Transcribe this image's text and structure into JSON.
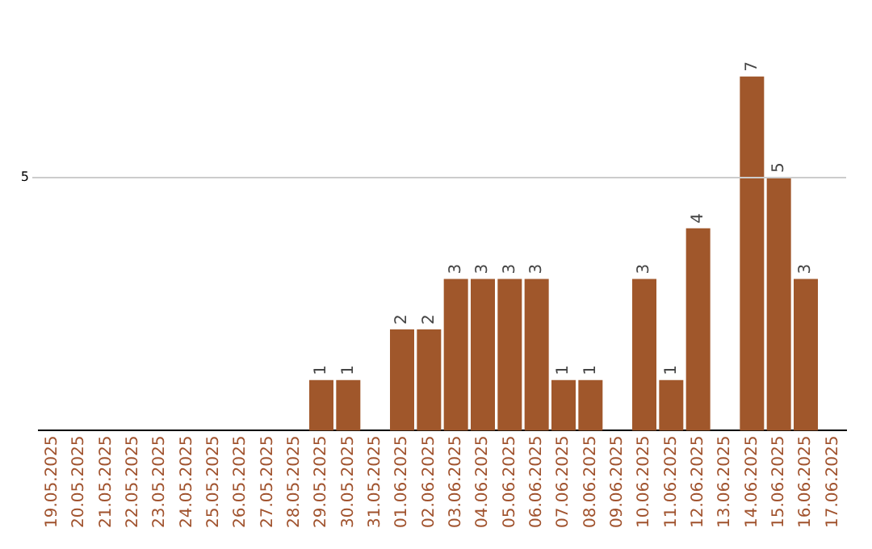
{
  "chart_data": {
    "type": "bar",
    "categories": [
      "19.05.2025",
      "20.05.2025",
      "21.05.2025",
      "22.05.2025",
      "23.05.2025",
      "24.05.2025",
      "25.05.2025",
      "26.05.2025",
      "27.05.2025",
      "28.05.2025",
      "29.05.2025",
      "30.05.2025",
      "31.05.2025",
      "01.06.2025",
      "02.06.2025",
      "03.06.2025",
      "04.06.2025",
      "05.06.2025",
      "06.06.2025",
      "07.06.2025",
      "08.06.2025",
      "09.06.2025",
      "10.06.2025",
      "11.06.2025",
      "12.06.2025",
      "13.06.2025",
      "14.06.2025",
      "15.06.2025",
      "16.06.2025",
      "17.06.2025"
    ],
    "values": [
      0,
      0,
      0,
      0,
      0,
      0,
      0,
      0,
      0,
      0,
      1,
      1,
      0,
      2,
      2,
      3,
      3,
      3,
      3,
      1,
      1,
      0,
      3,
      1,
      4,
      0,
      7,
      5,
      3,
      0
    ],
    "value_labels": [
      null,
      null,
      null,
      null,
      null,
      null,
      null,
      null,
      null,
      null,
      "1",
      "1",
      null,
      "2",
      "2",
      "3",
      "3",
      "3",
      "3",
      "1",
      "1",
      null,
      "3",
      "1",
      "4",
      null,
      "7",
      "5",
      "3",
      null
    ],
    "color": "#a0572b",
    "ref_lines": [
      {
        "axis": "y",
        "value": 5,
        "label": "5",
        "color": "#cccccc"
      }
    ],
    "legend": false
  }
}
